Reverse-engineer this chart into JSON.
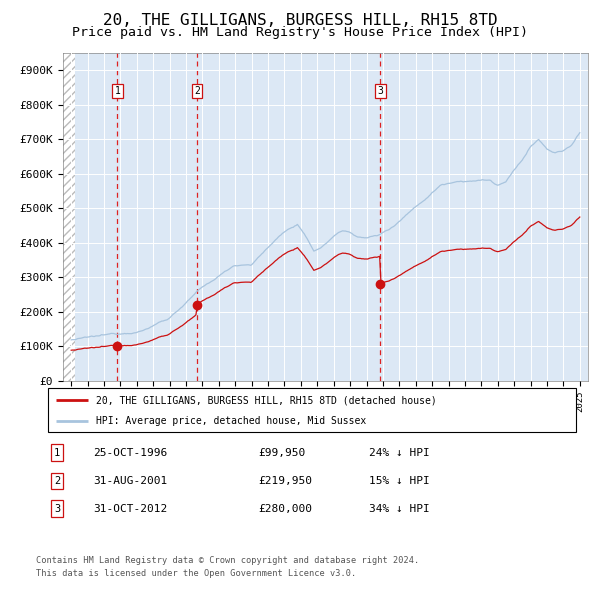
{
  "title": "20, THE GILLIGANS, BURGESS HILL, RH15 8TD",
  "subtitle": "Price paid vs. HM Land Registry's House Price Index (HPI)",
  "title_fontsize": 11.5,
  "subtitle_fontsize": 9.5,
  "background_color": "#ffffff",
  "plot_bg_color": "#dce8f5",
  "grid_color": "#ffffff",
  "hpi_line_color": "#a8c4de",
  "price_line_color": "#cc1111",
  "marker_color": "#cc1111",
  "dashed_line_color": "#dd2222",
  "sale_dates": [
    1996.81,
    2001.66,
    2012.83
  ],
  "sale_prices": [
    99950,
    219950,
    280000
  ],
  "sale_labels": [
    "1",
    "2",
    "3"
  ],
  "sale_label_dates": [
    "25-OCT-1996",
    "31-AUG-2001",
    "31-OCT-2012"
  ],
  "sale_label_prices": [
    "£99,950",
    "£219,950",
    "£280,000"
  ],
  "sale_label_hpi": [
    "24% ↓ HPI",
    "15% ↓ HPI",
    "34% ↓ HPI"
  ],
  "legend_line1": "20, THE GILLIGANS, BURGESS HILL, RH15 8TD (detached house)",
  "legend_line2": "HPI: Average price, detached house, Mid Sussex",
  "footer1": "Contains HM Land Registry data © Crown copyright and database right 2024.",
  "footer2": "This data is licensed under the Open Government Licence v3.0.",
  "ylim": [
    0,
    950000
  ],
  "ytick_vals": [
    0,
    100000,
    200000,
    300000,
    400000,
    500000,
    600000,
    700000,
    800000,
    900000
  ],
  "ytick_labels": [
    "£0",
    "£100K",
    "£200K",
    "£300K",
    "£400K",
    "£500K",
    "£600K",
    "£700K",
    "£800K",
    "£900K"
  ],
  "xlim": [
    1993.5,
    2025.5
  ],
  "xticks": [
    1994,
    1995,
    1996,
    1997,
    1998,
    1999,
    2000,
    2001,
    2002,
    2003,
    2004,
    2005,
    2006,
    2007,
    2008,
    2009,
    2010,
    2011,
    2012,
    2013,
    2014,
    2015,
    2016,
    2017,
    2018,
    2019,
    2020,
    2021,
    2022,
    2023,
    2024,
    2025
  ]
}
